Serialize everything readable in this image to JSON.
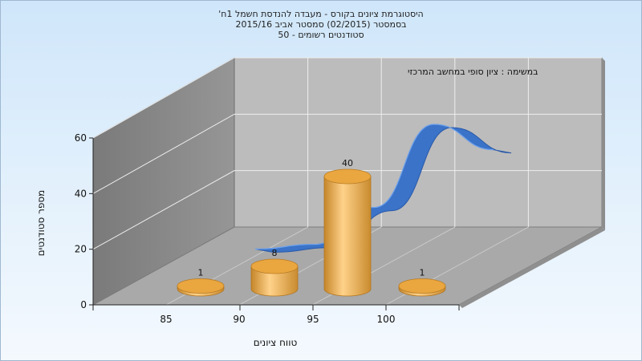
{
  "header": {
    "title": "היסטוגרמת ציונים בקורס - מעבדה להנדסת חשמל 1ח'",
    "subtitle": "בסמסטר (02/2015) סמסטר אביב 2015/16",
    "students": "סטודנטים רשומים - 50"
  },
  "chart_data": {
    "type": "bar",
    "title": "היסטוגרמת ציונים בקורס - מעבדה להנדסת חשמל 1ח'",
    "annotation": "במשימה : ציון סופי במחשב המרכזי",
    "xlabel": "טווח ציונים",
    "ylabel": "מספר סטודנטים",
    "categories": [
      "85",
      "90",
      "95",
      "100"
    ],
    "values": [
      1,
      8,
      40,
      1
    ],
    "ylim": [
      0,
      60
    ],
    "yticks": [
      0,
      20,
      40,
      60
    ],
    "grid": true,
    "overlay_curve": {
      "type": "area",
      "points": [
        3,
        5,
        21,
        57,
        46
      ]
    },
    "colors": {
      "bars": "#e8a33c",
      "curve": "#3a73c8",
      "back_wall": "#bcbcbc",
      "side_wall": "#8a8a8a",
      "floor": "#a9a9a9"
    }
  }
}
